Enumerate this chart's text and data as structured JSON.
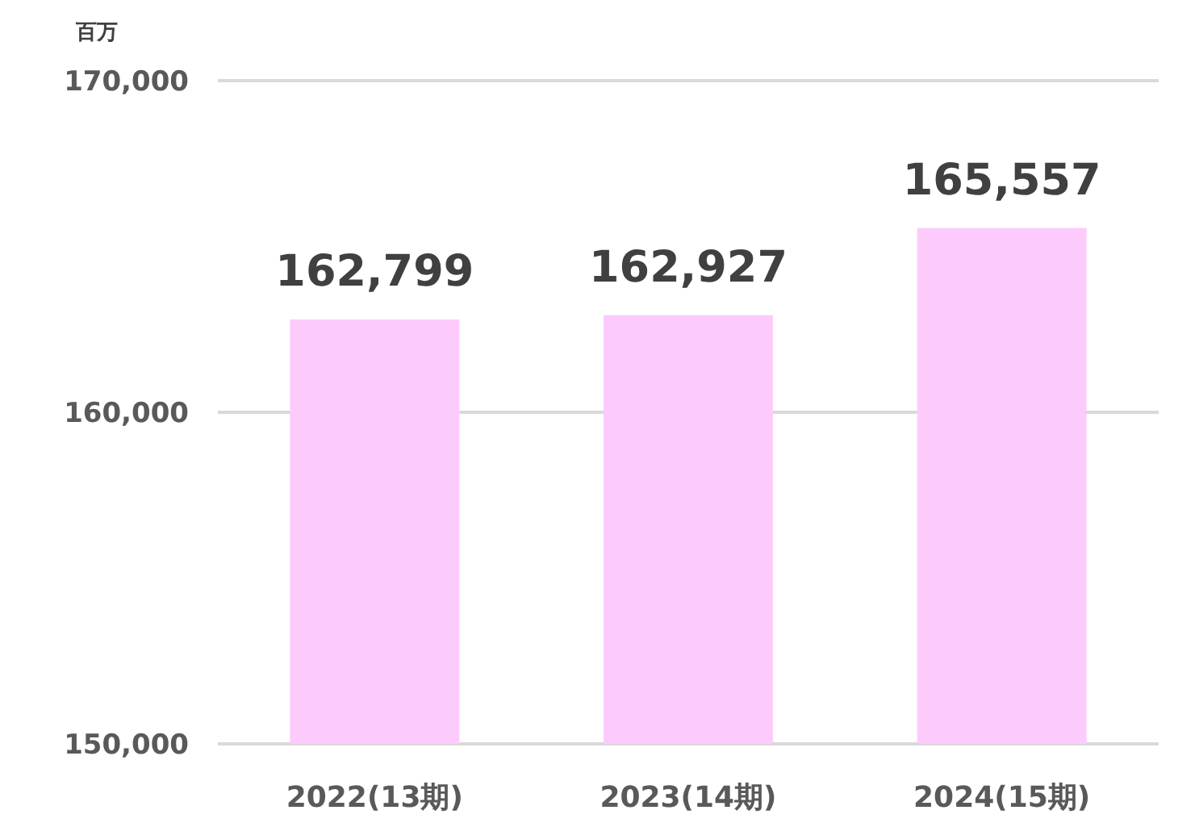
{
  "chart_data": {
    "type": "bar",
    "ylabel": "百万",
    "categories": [
      "2022(13期)",
      "2023(14期)",
      "2024(15期)"
    ],
    "values": [
      162799,
      162927,
      165557
    ],
    "value_labels": [
      "162,799",
      "162,927",
      "165,557"
    ],
    "color": "#fccbfc",
    "ylim": [
      150000,
      170000
    ],
    "yticks": [
      {
        "value": 150000,
        "label": "150,000"
      },
      {
        "value": 160000,
        "label": "160,000"
      },
      {
        "value": 170000,
        "label": "170,000"
      }
    ],
    "grid": "y"
  }
}
